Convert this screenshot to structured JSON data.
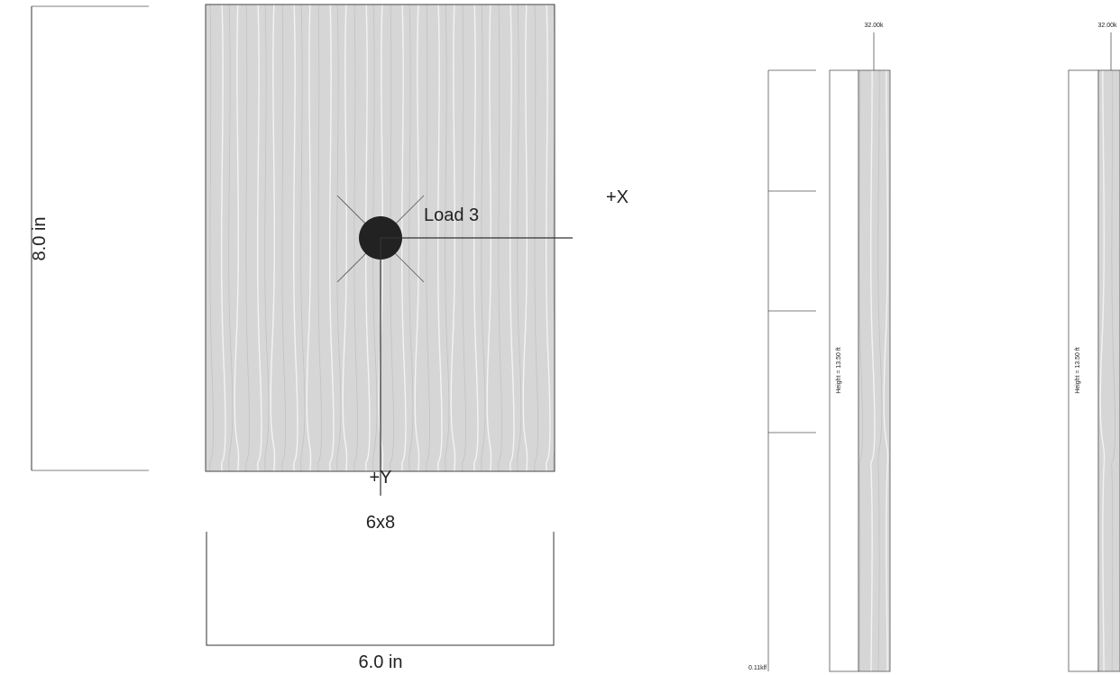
{
  "section": {
    "height_label": "8.0 in",
    "width_label": "6.0 in",
    "load_label": "Load 3",
    "x_axis": "+X",
    "y_axis": "+Y",
    "size": "6x8"
  },
  "columns": [
    {
      "load": "32.00k",
      "height": "Height = 13.50 ft",
      "distributed": "0.11klf"
    },
    {
      "load": "32.00k",
      "height": "Height = 13.50 ft"
    }
  ]
}
